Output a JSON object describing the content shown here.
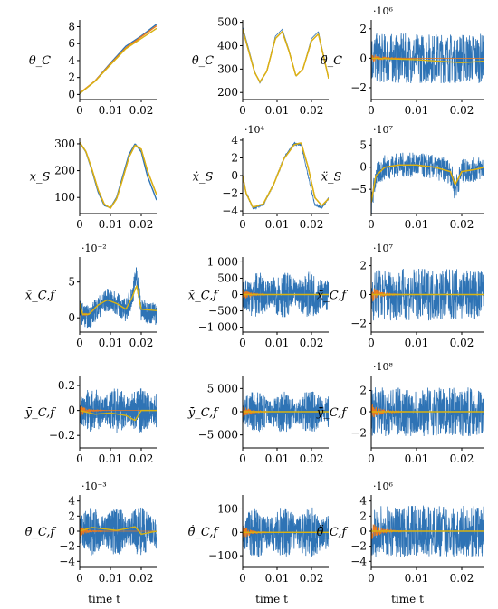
{
  "figure": {
    "xlabel": "time t",
    "colors": {
      "blue": "#2e73b5",
      "orange": "#ee7a1c",
      "yellow": "#d8b312"
    }
  },
  "chart_data": [
    {
      "type": "line",
      "ylabel": "θ_C",
      "exponent": "",
      "xlim": [
        0,
        0.025
      ],
      "ylim": [
        -0.6,
        8.8
      ],
      "xticks": [
        "0",
        "0.01",
        "0.02"
      ],
      "yticks": [
        {
          "v": 0,
          "l": "0"
        },
        {
          "v": 2,
          "l": "2"
        },
        {
          "v": 4,
          "l": "4"
        },
        {
          "v": 6,
          "l": "6"
        },
        {
          "v": 8,
          "l": "8"
        }
      ],
      "x": [
        0,
        0.005,
        0.01,
        0.015,
        0.02,
        0.025
      ],
      "series": [
        {
          "color": "blue",
          "values": [
            0.1,
            1.6,
            3.7,
            5.7,
            6.9,
            8.3
          ]
        },
        {
          "color": "orange",
          "values": [
            0.15,
            1.6,
            3.6,
            5.5,
            6.8,
            8.1
          ]
        },
        {
          "color": "yellow",
          "values": [
            0.1,
            1.55,
            3.5,
            5.4,
            6.6,
            7.8
          ]
        }
      ]
    },
    {
      "type": "line",
      "ylabel": "θ̇_C",
      "exponent": "",
      "xlim": [
        0,
        0.025
      ],
      "ylim": [
        170,
        510
      ],
      "xticks": [
        "0",
        "0.01",
        "0.02"
      ],
      "yticks": [
        {
          "v": 200,
          "l": "200"
        },
        {
          "v": 300,
          "l": "300"
        },
        {
          "v": 400,
          "l": "400"
        },
        {
          "v": 500,
          "l": "500"
        }
      ],
      "x": [
        0,
        0.0015,
        0.0035,
        0.005,
        0.007,
        0.0095,
        0.0115,
        0.0135,
        0.0155,
        0.0175,
        0.02,
        0.022,
        0.025
      ],
      "series": [
        {
          "color": "blue",
          "values": [
            480,
            400,
            290,
            240,
            290,
            440,
            470,
            380,
            270,
            300,
            430,
            460,
            260
          ],
          "noise": 0.1
        },
        {
          "color": "orange",
          "values": [
            470,
            390,
            285,
            245,
            290,
            430,
            460,
            375,
            270,
            300,
            420,
            450,
            260
          ]
        },
        {
          "color": "yellow",
          "values": [
            470,
            390,
            285,
            245,
            290,
            430,
            460,
            375,
            270,
            300,
            420,
            450,
            260
          ]
        }
      ]
    },
    {
      "type": "line",
      "ylabel": "θ̈_C",
      "exponent": "·10⁶",
      "xlim": [
        0,
        0.025
      ],
      "ylim": [
        -2.8,
        2.6
      ],
      "xticks": [
        "0",
        "0.01",
        "0.02"
      ],
      "yticks": [
        {
          "v": -2,
          "l": "−2"
        },
        {
          "v": 0,
          "l": "0"
        },
        {
          "v": 2,
          "l": "2"
        }
      ],
      "x": [
        0,
        0.01,
        0.02,
        0.025
      ],
      "series": [
        {
          "color": "blue",
          "values": [
            0,
            0,
            0,
            0
          ],
          "noise": 1.7
        },
        {
          "color": "orange",
          "values": [
            0,
            0,
            0,
            0
          ],
          "noise": 0.3,
          "decay": true
        },
        {
          "color": "yellow",
          "values": [
            0,
            -0.1,
            -0.3,
            -0.2
          ]
        }
      ]
    },
    {
      "type": "line",
      "ylabel": "x_S",
      "exponent": "",
      "xlim": [
        0,
        0.025
      ],
      "ylim": [
        40,
        320
      ],
      "xticks": [
        "0",
        "0.01",
        "0.02"
      ],
      "yticks": [
        {
          "v": 100,
          "l": "100"
        },
        {
          "v": 200,
          "l": "200"
        },
        {
          "v": 300,
          "l": "300"
        }
      ],
      "x": [
        0,
        0.002,
        0.004,
        0.006,
        0.008,
        0.01,
        0.012,
        0.014,
        0.016,
        0.018,
        0.02,
        0.022,
        0.025
      ],
      "series": [
        {
          "color": "blue",
          "values": [
            305,
            270,
            200,
            120,
            70,
            62,
            100,
            180,
            260,
            300,
            270,
            180,
            90
          ]
        },
        {
          "color": "orange",
          "values": [
            305,
            272,
            205,
            128,
            75,
            60,
            95,
            170,
            250,
            295,
            280,
            200,
            110
          ]
        },
        {
          "color": "yellow",
          "values": [
            305,
            272,
            205,
            128,
            75,
            60,
            95,
            170,
            250,
            295,
            280,
            200,
            110
          ]
        }
      ]
    },
    {
      "type": "line",
      "ylabel": "ẋ_S",
      "exponent": "·10⁴",
      "xlim": [
        0,
        0.025
      ],
      "ylim": [
        -4.3,
        4.2
      ],
      "xticks": [
        "0",
        "0.01",
        "0.02"
      ],
      "yticks": [
        {
          "v": -4,
          "l": "−4"
        },
        {
          "v": -2,
          "l": "−2"
        },
        {
          "v": 0,
          "l": "0"
        },
        {
          "v": 2,
          "l": "2"
        },
        {
          "v": 4,
          "l": "4"
        }
      ],
      "x": [
        0,
        0.001,
        0.003,
        0.006,
        0.009,
        0.012,
        0.015,
        0.017,
        0.019,
        0.021,
        0.023,
        0.025
      ],
      "series": [
        {
          "color": "blue",
          "values": [
            0,
            -2,
            -3.7,
            -3.3,
            -1,
            2,
            3.6,
            3.5,
            0,
            -3.3,
            -3.6,
            -2.6
          ],
          "noise": 0.15
        },
        {
          "color": "orange",
          "values": [
            0,
            -2,
            -3.6,
            -3.2,
            -1,
            1.9,
            3.5,
            3.7,
            1,
            -2.5,
            -3.4,
            -2.6
          ]
        },
        {
          "color": "yellow",
          "values": [
            0,
            -2,
            -3.6,
            -3.2,
            -1,
            1.9,
            3.5,
            3.7,
            1,
            -2.5,
            -3.4,
            -2.6
          ]
        }
      ]
    },
    {
      "type": "line",
      "ylabel": "ẍ_S",
      "exponent": "·10⁷",
      "xlim": [
        0,
        0.025
      ],
      "ylim": [
        -10.5,
        6.5
      ],
      "xticks": [
        "0",
        "0.01",
        "0.02"
      ],
      "yticks": [
        {
          "v": -5,
          "l": "−5"
        },
        {
          "v": 0,
          "l": "0"
        },
        {
          "v": 5,
          "l": "5"
        }
      ],
      "x": [
        0,
        0.001,
        0.003,
        0.006,
        0.01,
        0.014,
        0.0175,
        0.0185,
        0.02,
        0.023,
        0.025
      ],
      "series": [
        {
          "color": "blue",
          "values": [
            -9,
            -2,
            0,
            0.5,
            0.5,
            0,
            -1,
            -5,
            -1,
            -0.5,
            0
          ],
          "noise": 2.8
        },
        {
          "color": "orange",
          "values": [
            -8,
            -2,
            0,
            0.5,
            0.5,
            0,
            -1,
            -4,
            -1,
            -0.5,
            0
          ]
        },
        {
          "color": "yellow",
          "values": [
            -8,
            -2,
            0,
            0.5,
            0.5,
            0,
            -1,
            -4,
            -1,
            -0.5,
            0
          ]
        }
      ]
    },
    {
      "type": "line",
      "ylabel": "x̄_C,f",
      "exponent": "·10⁻²",
      "xlim": [
        0,
        0.025
      ],
      "ylim": [
        -2,
        8.5
      ],
      "xticks": [
        "0",
        "0.01",
        "0.02"
      ],
      "yticks": [
        {
          "v": 0,
          "l": "0"
        },
        {
          "v": 5,
          "l": "5"
        }
      ],
      "x": [
        0,
        0.001,
        0.003,
        0.006,
        0.009,
        0.012,
        0.015,
        0.017,
        0.0185,
        0.02,
        0.025
      ],
      "series": [
        {
          "color": "blue",
          "values": [
            1,
            0.5,
            0,
            1.5,
            2.5,
            2,
            1,
            3,
            6,
            1,
            0.5
          ],
          "noise": 1.6
        },
        {
          "color": "orange",
          "values": [
            2,
            0.5,
            0.5,
            1.8,
            2.5,
            2,
            1.2,
            2.8,
            4.5,
            1.2,
            1
          ],
          "noise": 0.4,
          "decay": true
        },
        {
          "color": "yellow",
          "values": [
            2,
            0.5,
            0.5,
            1.8,
            2.5,
            2,
            1.2,
            2.8,
            4.5,
            1.2,
            1
          ]
        }
      ]
    },
    {
      "type": "line",
      "ylabel": "ẋ̄_C,f",
      "exponent": "",
      "xlim": [
        0,
        0.025
      ],
      "ylim": [
        -1150,
        1150
      ],
      "xticks": [
        "0",
        "0.01",
        "0.02"
      ],
      "yticks": [
        {
          "v": -1000,
          "l": "−1 000"
        },
        {
          "v": -500,
          "l": "−500"
        },
        {
          "v": 0,
          "l": "0"
        },
        {
          "v": 500,
          "l": "500"
        },
        {
          "v": 1000,
          "l": "1 000"
        }
      ],
      "x": [
        0,
        0.0125,
        0.025
      ],
      "series": [
        {
          "color": "blue",
          "values": [
            0,
            0,
            0
          ],
          "noise": 700,
          "burst": true
        },
        {
          "color": "orange",
          "values": [
            0,
            0,
            0
          ],
          "noise": 200,
          "decay": true
        },
        {
          "color": "yellow",
          "values": [
            0,
            0,
            0
          ]
        }
      ]
    },
    {
      "type": "line",
      "ylabel": "ẍ̄_C,f",
      "exponent": "·10⁷",
      "xlim": [
        0,
        0.025
      ],
      "ylim": [
        -2.6,
        2.6
      ],
      "xticks": [
        "0",
        "0.01",
        "0.02"
      ],
      "yticks": [
        {
          "v": -2,
          "l": "−2"
        },
        {
          "v": 0,
          "l": "0"
        },
        {
          "v": 2,
          "l": "2"
        }
      ],
      "x": [
        0,
        0.0125,
        0.025
      ],
      "series": [
        {
          "color": "blue",
          "values": [
            0,
            0,
            0
          ],
          "noise": 1.8
        },
        {
          "color": "orange",
          "values": [
            0,
            0,
            0
          ],
          "noise": 0.6,
          "decay": true
        },
        {
          "color": "yellow",
          "values": [
            0,
            0,
            0
          ]
        }
      ]
    },
    {
      "type": "line",
      "ylabel": "ȳ_C,f",
      "exponent": "",
      "xlim": [
        0,
        0.025
      ],
      "ylim": [
        -0.3,
        0.28
      ],
      "xticks": [
        "0",
        "0.01",
        "0.02"
      ],
      "yticks": [
        {
          "v": -0.2,
          "l": "−0.2"
        },
        {
          "v": 0,
          "l": "0"
        },
        {
          "v": 0.2,
          "l": "0.2"
        }
      ],
      "x": [
        0,
        0.005,
        0.01,
        0.015,
        0.018,
        0.02,
        0.025
      ],
      "series": [
        {
          "color": "blue",
          "values": [
            0,
            0,
            0,
            0,
            0,
            0,
            0
          ],
          "noise": 0.18,
          "burst": true
        },
        {
          "color": "orange",
          "values": [
            0,
            0,
            0,
            0,
            0,
            0,
            0
          ],
          "noise": 0.05,
          "decay": true
        },
        {
          "color": "yellow",
          "values": [
            0,
            -0.03,
            -0.02,
            -0.04,
            -0.08,
            0,
            0
          ]
        }
      ]
    },
    {
      "type": "line",
      "ylabel": "ẏ̄_C,f",
      "exponent": "",
      "xlim": [
        0,
        0.025
      ],
      "ylim": [
        -7800,
        7800
      ],
      "xticks": [
        "0",
        "0.01",
        "0.02"
      ],
      "yticks": [
        {
          "v": -5000,
          "l": "−5 000"
        },
        {
          "v": 0,
          "l": "0"
        },
        {
          "v": 5000,
          "l": "5 000"
        }
      ],
      "x": [
        0,
        0.0125,
        0.025
      ],
      "series": [
        {
          "color": "blue",
          "values": [
            0,
            0,
            0
          ],
          "noise": 4500,
          "burst": true
        },
        {
          "color": "orange",
          "values": [
            0,
            0,
            0
          ],
          "noise": 1500,
          "decay": true
        },
        {
          "color": "yellow",
          "values": [
            0,
            0,
            0
          ]
        }
      ]
    },
    {
      "type": "line",
      "ylabel": "ÿ̄_C,f",
      "exponent": "·10⁸",
      "xlim": [
        0,
        0.025
      ],
      "ylim": [
        -3.4,
        3.4
      ],
      "xticks": [
        "0",
        "0.01",
        "0.02"
      ],
      "yticks": [
        {
          "v": -2,
          "l": "−2"
        },
        {
          "v": 0,
          "l": "0"
        },
        {
          "v": 2,
          "l": "2"
        }
      ],
      "x": [
        0,
        0.0125,
        0.025
      ],
      "series": [
        {
          "color": "blue",
          "values": [
            0,
            0,
            0
          ],
          "noise": 2.3
        },
        {
          "color": "orange",
          "values": [
            0,
            0,
            0
          ],
          "noise": 0.8,
          "decay": true
        },
        {
          "color": "yellow",
          "values": [
            0,
            0,
            0
          ]
        }
      ]
    },
    {
      "type": "line",
      "ylabel": "θ̄_C,f",
      "exponent": "·10⁻³",
      "xlim": [
        0,
        0.025
      ],
      "ylim": [
        -4.8,
        4.8
      ],
      "xticks": [
        "0",
        "0.01",
        "0.02"
      ],
      "yticks": [
        {
          "v": -4,
          "l": "−4"
        },
        {
          "v": -2,
          "l": "−2"
        },
        {
          "v": 0,
          "l": "0"
        },
        {
          "v": 2,
          "l": "2"
        },
        {
          "v": 4,
          "l": "4"
        }
      ],
      "x": [
        0,
        0.004,
        0.008,
        0.012,
        0.016,
        0.018,
        0.02,
        0.025
      ],
      "series": [
        {
          "color": "blue",
          "values": [
            0,
            0,
            0,
            0,
            0,
            0,
            0,
            0
          ],
          "noise": 3.2,
          "burst": true
        },
        {
          "color": "orange",
          "values": [
            0,
            0,
            0,
            0,
            0,
            0,
            0,
            0
          ],
          "noise": 0.8,
          "decay": true
        },
        {
          "color": "yellow",
          "values": [
            0,
            0.5,
            0.3,
            0.1,
            0.4,
            0.6,
            -0.4,
            0
          ]
        }
      ]
    },
    {
      "type": "line",
      "ylabel": "θ̄̇_C,f",
      "exponent": "",
      "xlim": [
        0,
        0.025
      ],
      "ylim": [
        -150,
        160
      ],
      "xticks": [
        "0",
        "0.01",
        "0.02"
      ],
      "yticks": [
        {
          "v": -100,
          "l": "−100"
        },
        {
          "v": 0,
          "l": "0"
        },
        {
          "v": 100,
          "l": "100"
        }
      ],
      "x": [
        0,
        0.0125,
        0.025
      ],
      "series": [
        {
          "color": "blue",
          "values": [
            0,
            0,
            0
          ],
          "noise": 110,
          "burst": true
        },
        {
          "color": "orange",
          "values": [
            0,
            0,
            0
          ],
          "noise": 35,
          "decay": true
        },
        {
          "color": "yellow",
          "values": [
            0,
            0,
            0
          ]
        }
      ]
    },
    {
      "type": "line",
      "ylabel": "θ̄̈_C,f",
      "exponent": "·10⁶",
      "xlim": [
        0,
        0.025
      ],
      "ylim": [
        -4.8,
        4.8
      ],
      "xticks": [
        "0",
        "0.01",
        "0.02"
      ],
      "yticks": [
        {
          "v": -4,
          "l": "−4"
        },
        {
          "v": -2,
          "l": "−2"
        },
        {
          "v": 0,
          "l": "0"
        },
        {
          "v": 2,
          "l": "2"
        },
        {
          "v": 4,
          "l": "4"
        }
      ],
      "x": [
        0,
        0.0125,
        0.025
      ],
      "series": [
        {
          "color": "blue",
          "values": [
            0,
            0,
            0
          ],
          "noise": 3.4
        },
        {
          "color": "orange",
          "values": [
            0,
            0,
            0
          ],
          "noise": 1.2,
          "decay": true
        },
        {
          "color": "yellow",
          "values": [
            0,
            0,
            0
          ]
        }
      ]
    }
  ]
}
